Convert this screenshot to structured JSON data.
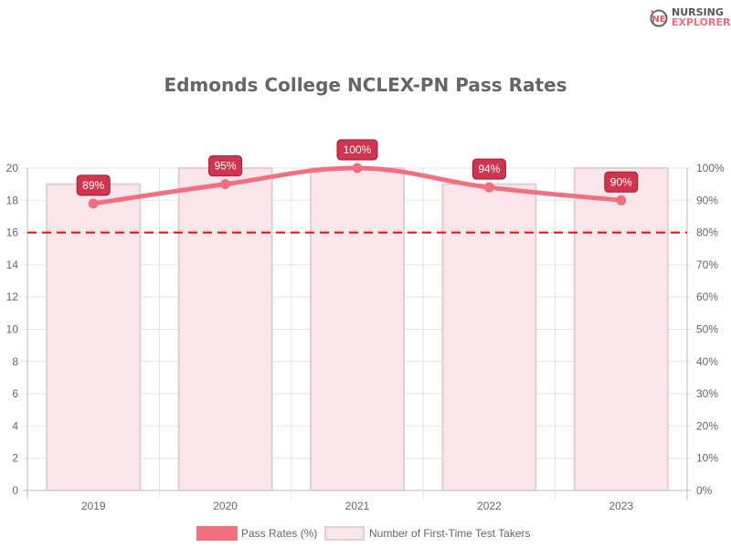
{
  "logo": {
    "line1": "NURSING",
    "line2": "EXPLORER"
  },
  "chart_data": {
    "type": "bar",
    "title": "Edmonds College NCLEX-PN Pass Rates",
    "categories": [
      "2019",
      "2020",
      "2021",
      "2022",
      "2023"
    ],
    "series": [
      {
        "name": "Pass Rates (%)",
        "type": "line",
        "axis": "right",
        "values": [
          89,
          95,
          100,
          94,
          90
        ],
        "labels": [
          "89%",
          "95%",
          "100%",
          "94%",
          "90%"
        ],
        "color": "#f07080"
      },
      {
        "name": "Number of First-Time Test Takers",
        "type": "bar",
        "axis": "left",
        "values": [
          19,
          20,
          20,
          19,
          20
        ],
        "color": "#fae6ea"
      }
    ],
    "left_axis": {
      "range": [
        0,
        20
      ],
      "ticks": [
        "0",
        "2",
        "4",
        "6",
        "8",
        "10",
        "12",
        "14",
        "16",
        "18",
        "20"
      ]
    },
    "right_axis": {
      "range": [
        0,
        100
      ],
      "ticks": [
        "0%",
        "10%",
        "20%",
        "30%",
        "40%",
        "50%",
        "60%",
        "70%",
        "80%",
        "90%",
        "100%"
      ]
    },
    "reference_line": {
      "value": 80,
      "axis": "right",
      "style": "dashed",
      "color": "#ff0000"
    },
    "grid": true,
    "legend": "bottom"
  }
}
